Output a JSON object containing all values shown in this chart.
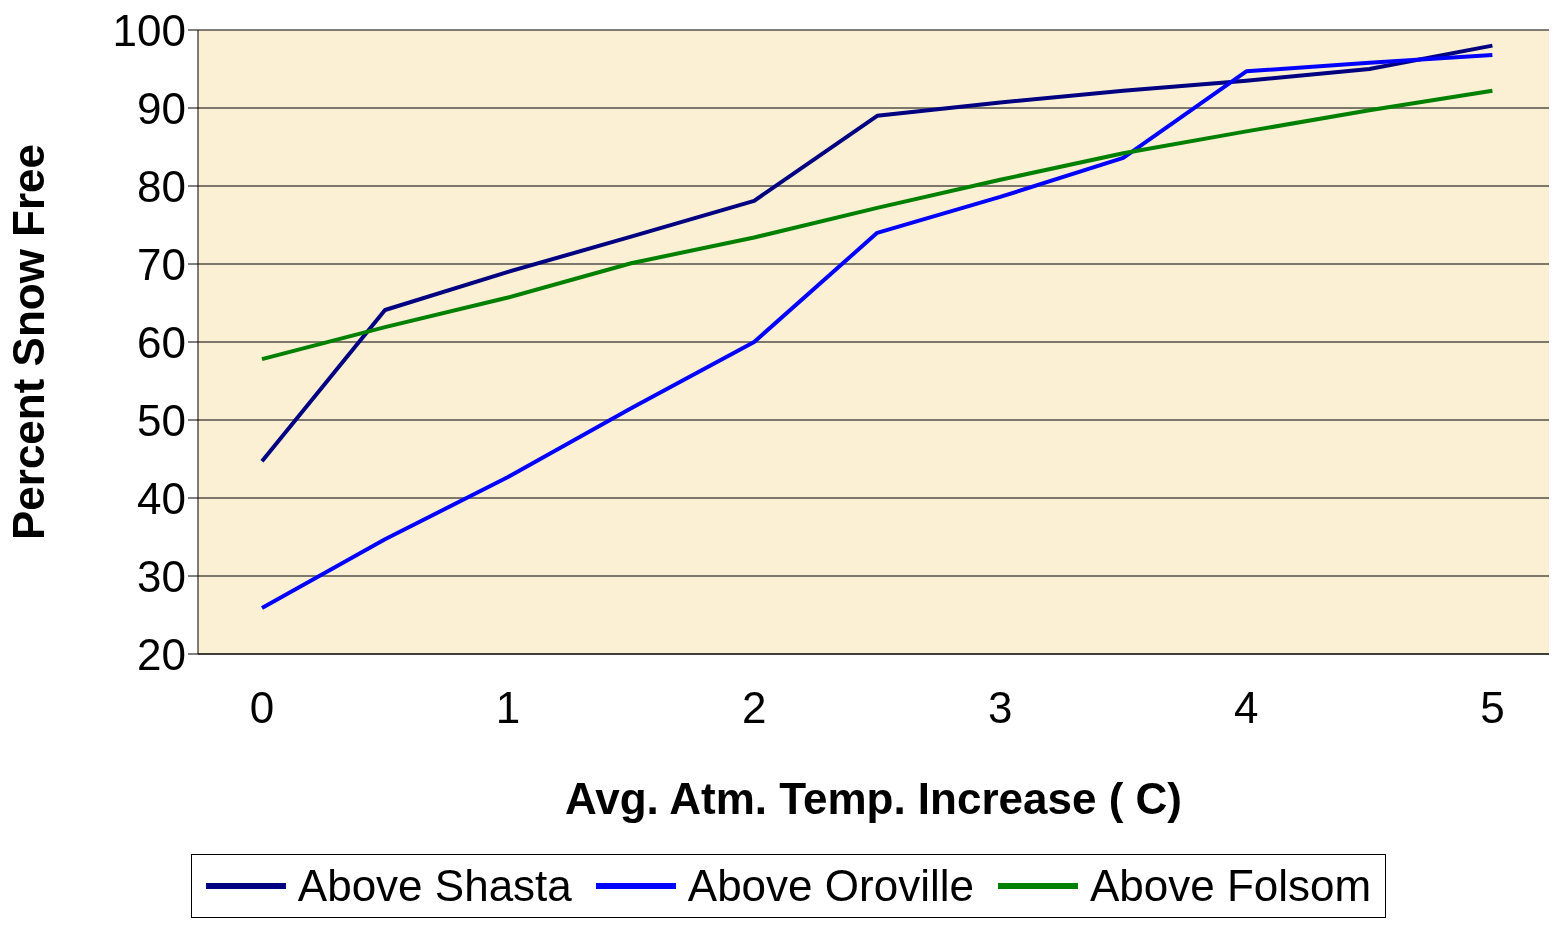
{
  "chart_data": {
    "type": "line",
    "xlabel": "Avg. Atm. Temp. Increase ( C)",
    "ylabel": "Percent Snow Free",
    "x": [
      0,
      0.5,
      1,
      1.5,
      2,
      2.5,
      3,
      3.5,
      4,
      4.5,
      5
    ],
    "series": [
      {
        "name": "Above Shasta",
        "color": "#000080",
        "values": [
          44.7,
          64.1,
          69,
          73.5,
          78.1,
          89,
          90.7,
          92.2,
          93.5,
          95,
          98
        ]
      },
      {
        "name": "Above Oroville",
        "color": "#0000ff",
        "values": [
          25.9,
          34.7,
          42.7,
          51.5,
          60,
          74,
          78.6,
          83.6,
          94.7,
          95.8,
          96.8
        ]
      },
      {
        "name": "Above Folsom",
        "color": "#008000",
        "values": [
          57.8,
          61.9,
          65.7,
          70.1,
          73.4,
          77.2,
          80.8,
          84.2,
          87,
          89.7,
          92.2
        ]
      }
    ],
    "xlim": [
      -0.26,
      5.23
    ],
    "xticks": [
      0,
      1,
      2,
      3,
      4,
      5
    ],
    "ylim": [
      20,
      100
    ],
    "yticks": [
      20,
      30,
      40,
      50,
      60,
      70,
      80,
      90,
      100
    ],
    "grid": "y",
    "legend": "bottom",
    "marker": "none",
    "line_style": "solid"
  }
}
